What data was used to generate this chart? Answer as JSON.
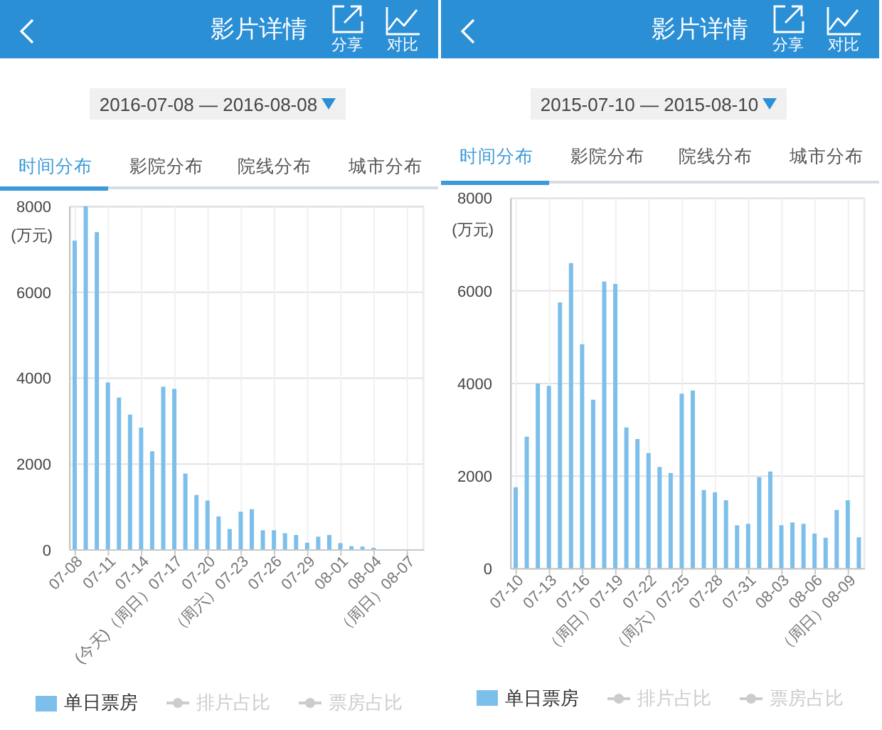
{
  "chart_data": [
    {
      "type": "bar",
      "title": "影片详情",
      "subtitle": "2016-07-08 — 2016-08-08",
      "annotations": [
        "分享",
        "对比",
        "时间分布",
        "影院分布",
        "院线分布",
        "城市分布"
      ],
      "ylabel": "(万元)",
      "categories": [
        "07-08",
        null,
        null,
        "07-11",
        null,
        null,
        "07-14",
        null,
        null,
        "(今天)（周日）07-17",
        null,
        null,
        "07-20",
        null,
        null,
        "（周六）07-23",
        null,
        null,
        "07-26",
        null,
        null,
        "07-29",
        null,
        null,
        "08-01",
        null,
        null,
        "08-04",
        null,
        null,
        "（周日）08-07",
        null
      ],
      "series": [
        {
          "name": "单日票房",
          "color": "#7dbfeb",
          "values": [
            7200,
            8000,
            7400,
            3900,
            3550,
            3150,
            2850,
            2300,
            3800,
            3750,
            1780,
            1280,
            1150,
            780,
            490,
            890,
            950,
            460,
            460,
            390,
            350,
            170,
            310,
            350,
            160,
            90,
            80,
            50,
            null,
            null,
            null,
            null
          ]
        },
        {
          "name": "排片占比",
          "type": "line",
          "color": "#cccccc",
          "values": [
            null,
            null,
            null,
            null,
            null,
            null,
            null,
            null,
            null,
            null,
            null,
            null,
            null,
            null,
            null,
            null,
            null,
            null,
            null,
            null,
            null,
            null,
            null,
            null,
            null,
            null,
            null,
            null,
            null,
            null,
            null,
            null
          ]
        },
        {
          "name": "票房占比",
          "type": "line",
          "color": "#cccccc",
          "values": [
            null,
            null,
            null,
            null,
            null,
            null,
            null,
            null,
            null,
            null,
            null,
            null,
            null,
            null,
            null,
            null,
            null,
            null,
            null,
            null,
            null,
            null,
            null,
            null,
            null,
            null,
            null,
            null,
            null,
            null,
            null,
            null
          ]
        }
      ],
      "ylim": [
        0,
        8000
      ],
      "yticks": [
        0,
        2000,
        4000,
        6000,
        8000
      ],
      "grid": true,
      "legend": "bottom",
      "marker": "circle"
    },
    {
      "type": "bar",
      "title": "影片详情",
      "subtitle": "2015-07-10 — 2015-08-10",
      "annotations": [
        "分享",
        "对比",
        "时间分布",
        "影院分布",
        "院线分布",
        "城市分布"
      ],
      "ylabel": "(万元)",
      "categories": [
        "07-10",
        null,
        null,
        "07-13",
        null,
        null,
        "07-16",
        null,
        null,
        "（周日）07-19",
        null,
        null,
        "07-22",
        null,
        null,
        "（周六）07-25",
        null,
        null,
        "07-28",
        null,
        null,
        "07-31",
        null,
        null,
        "08-03",
        null,
        null,
        "08-06",
        null,
        null,
        "（周日）08-09",
        null
      ],
      "series": [
        {
          "name": "单日票房",
          "color": "#7dbfeb",
          "values": [
            1760,
            2850,
            4000,
            3950,
            5750,
            6600,
            4850,
            3650,
            6200,
            6150,
            3050,
            2800,
            2500,
            2200,
            2070,
            3780,
            3850,
            1700,
            1650,
            1480,
            940,
            970,
            1980,
            2100,
            940,
            1000,
            970,
            760,
            670,
            1270,
            1480,
            680
          ]
        },
        {
          "name": "排片占比",
          "type": "line",
          "color": "#cccccc",
          "values": [
            null,
            null,
            null,
            null,
            null,
            null,
            null,
            null,
            null,
            null,
            null,
            null,
            null,
            null,
            null,
            null,
            null,
            null,
            null,
            null,
            null,
            null,
            null,
            null,
            null,
            null,
            null,
            null,
            null,
            null,
            null,
            null
          ]
        },
        {
          "name": "票房占比",
          "type": "line",
          "color": "#cccccc",
          "values": [
            null,
            null,
            null,
            null,
            null,
            null,
            null,
            null,
            null,
            null,
            null,
            null,
            null,
            null,
            null,
            null,
            null,
            null,
            null,
            null,
            null,
            null,
            null,
            null,
            null,
            null,
            null,
            null,
            null,
            null,
            null,
            null
          ]
        }
      ],
      "ylim": [
        0,
        8000
      ],
      "yticks": [
        0,
        2000,
        4000,
        6000,
        8000
      ],
      "grid": true,
      "legend": "bottom",
      "marker": "circle"
    }
  ]
}
